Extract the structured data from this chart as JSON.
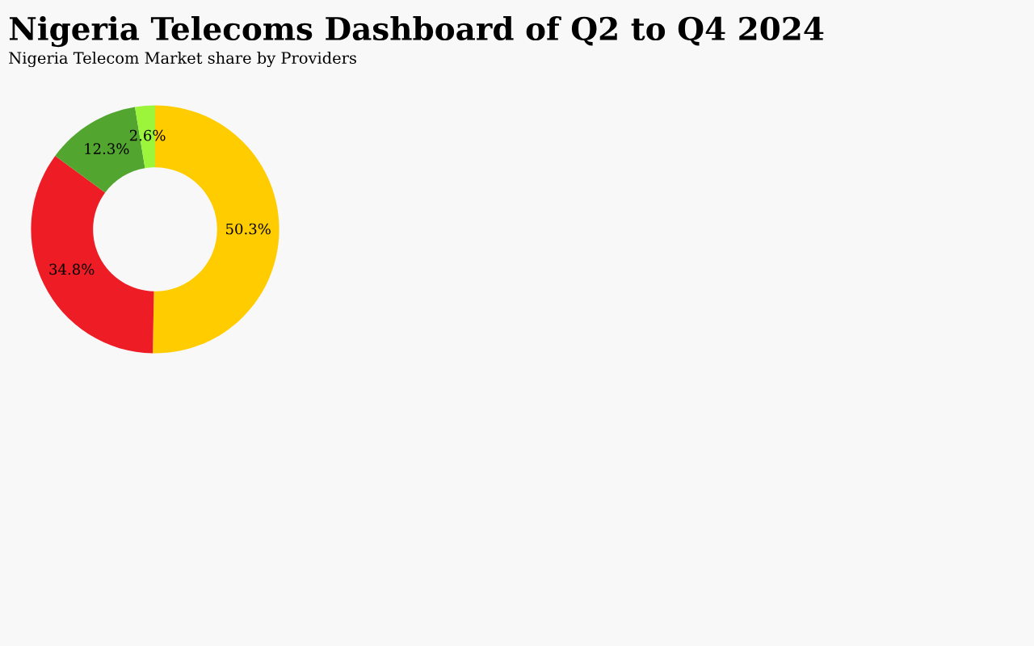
{
  "chart_data": {
    "type": "donut",
    "title": "Nigeria Telecoms Dashboard of Q2 to Q4 2024",
    "subtitle": "Nigeria Telecom Market share by Providers",
    "categories": [
      null,
      null,
      null,
      null
    ],
    "values": [
      50.3,
      34.8,
      12.3,
      2.6
    ],
    "colors": [
      "#ffcc00",
      "#ee1c25",
      "#52a62f",
      "#9cf53a"
    ],
    "value_labels": [
      "50.3%",
      "34.8%",
      "12.3%",
      "2.6%"
    ],
    "legend": false
  }
}
